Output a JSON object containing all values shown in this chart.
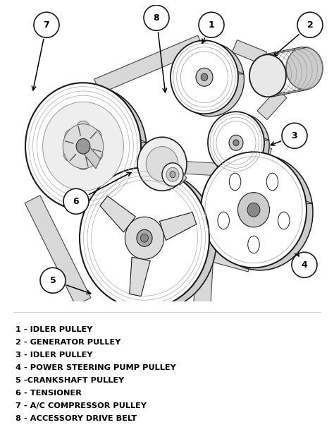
{
  "bg_color": "#ffffff",
  "legend_items": [
    "1 - IDLER PULLEY",
    "2 - GENERATOR PULLEY",
    "3 - IDLER PULLEY",
    "4 - POWER STEERING PUMP PULLEY",
    "5 -CRANKSHAFT PULLEY",
    "6 - TENSIONER",
    "7 - A/C COMPRESSOR PULLEY",
    "8 - ACCESSORY DRIVE BELT"
  ],
  "fig_width": 4.74,
  "fig_height": 6.12,
  "dpi": 100,
  "line_color": "#1a1a1a",
  "fill_color": "#ffffff",
  "shade_color": "#e8e8e8",
  "belt_color": "#d0d0d0",
  "belt_edge": "#333333"
}
